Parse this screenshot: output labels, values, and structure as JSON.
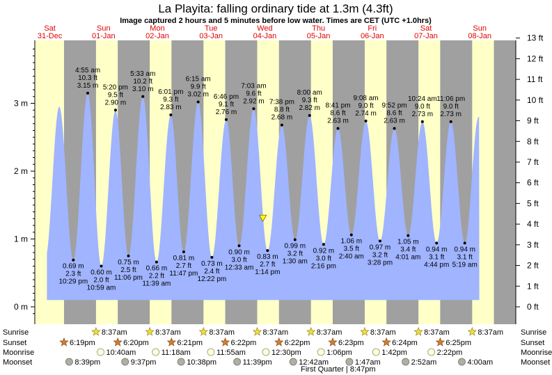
{
  "title": "La Playita: falling  ordinary tide at 1.3m (4.3ft)",
  "subtitle": "Image captured 2 hours and 5 minutes before low water. Times are CET (UTC +1.0hrs)",
  "colors": {
    "day": "#ffffc8",
    "night": "#a0a0a0",
    "tide": "#a0b4ff",
    "dayLabel": "#e00000"
  },
  "chart_data": {
    "type": "area",
    "days": [
      {
        "name": "Sat",
        "date": "31-Dec"
      },
      {
        "name": "Sun",
        "date": "01-Jan"
      },
      {
        "name": "Mon",
        "date": "02-Jan"
      },
      {
        "name": "Tue",
        "date": "03-Jan"
      },
      {
        "name": "Wed",
        "date": "04-Jan"
      },
      {
        "name": "Thu",
        "date": "05-Jan"
      },
      {
        "name": "Fri",
        "date": "06-Jan"
      },
      {
        "name": "Sat",
        "date": "07-Jan"
      },
      {
        "name": "Sun",
        "date": "08-Jan"
      }
    ],
    "y_left": {
      "unit": "m",
      "range": [
        -0.2,
        4.0
      ],
      "ticks": [
        "0 m",
        "1 m",
        "2 m",
        "3 m"
      ]
    },
    "y_right": {
      "unit": "ft",
      "ticks": [
        "0 ft",
        "1 ft",
        "2 ft",
        "3 ft",
        "4 ft",
        "5 ft",
        "6 ft",
        "7 ft",
        "8 ft",
        "9 ft",
        "10 ft",
        "11 ft",
        "12 ft",
        "13 ft"
      ]
    },
    "highs": [
      {
        "time": "4:55 am",
        "ft": "10.3 ft",
        "m": "3.15 m",
        "mv": 3.15,
        "day": 1,
        "hr": 4.92
      },
      {
        "time": "5:20 pm",
        "ft": "9.5 ft",
        "m": "2.90 m",
        "mv": 2.9,
        "day": 1,
        "hr": 17.33
      },
      {
        "time": "5:33 am",
        "ft": "10.2 ft",
        "m": "3.10 m",
        "mv": 3.1,
        "day": 2,
        "hr": 5.55
      },
      {
        "time": "6:01 pm",
        "ft": "9.3 ft",
        "m": "2.83 m",
        "mv": 2.83,
        "day": 2,
        "hr": 18.02
      },
      {
        "time": "6:15 am",
        "ft": "9.9 ft",
        "m": "3.02 m",
        "mv": 3.02,
        "day": 3,
        "hr": 6.25
      },
      {
        "time": "6:46 pm",
        "ft": "9.1 ft",
        "m": "2.76 m",
        "mv": 2.76,
        "day": 3,
        "hr": 18.77
      },
      {
        "time": "7:03 am",
        "ft": "9.6 ft",
        "m": "2.92 m",
        "mv": 2.92,
        "day": 4,
        "hr": 7.05
      },
      {
        "time": "7:38 pm",
        "ft": "8.8 ft",
        "m": "2.68 m",
        "mv": 2.68,
        "day": 4,
        "hr": 19.63
      },
      {
        "time": "8:00 am",
        "ft": "9.3 ft",
        "m": "2.82 m",
        "mv": 2.82,
        "day": 5,
        "hr": 8.0
      },
      {
        "time": "8:41 pm",
        "ft": "8.6 ft",
        "m": "2.63 m",
        "mv": 2.63,
        "day": 5,
        "hr": 20.68
      },
      {
        "time": "9:08 am",
        "ft": "9.0 ft",
        "m": "2.74 m",
        "mv": 2.74,
        "day": 6,
        "hr": 9.13
      },
      {
        "time": "9:52 pm",
        "ft": "8.6 ft",
        "m": "2.63 m",
        "mv": 2.63,
        "day": 6,
        "hr": 21.87
      },
      {
        "time": "10:24 am",
        "ft": "9.0 ft",
        "m": "2.73 m",
        "mv": 2.73,
        "day": 7,
        "hr": 10.4
      },
      {
        "time": "11:06 pm",
        "ft": "9.0 ft",
        "m": "2.73 m",
        "mv": 2.73,
        "day": 7,
        "hr": 23.1
      }
    ],
    "lows": [
      {
        "time": "10:29 pm",
        "ft": "2.3 ft",
        "m": "0.69 m",
        "mv": 0.69,
        "day": 0,
        "hr": 22.48
      },
      {
        "time": "10:59 am",
        "ft": "2.0 ft",
        "m": "0.60 m",
        "mv": 0.6,
        "day": 1,
        "hr": 10.98
      },
      {
        "time": "11:06 pm",
        "ft": "2.5 ft",
        "m": "0.75 m",
        "mv": 0.75,
        "day": 1,
        "hr": 23.1
      },
      {
        "time": "11:39 am",
        "ft": "2.2 ft",
        "m": "0.66 m",
        "mv": 0.66,
        "day": 2,
        "hr": 11.65
      },
      {
        "time": "11:47 pm",
        "ft": "2.7 ft",
        "m": "0.81 m",
        "mv": 0.81,
        "day": 2,
        "hr": 23.78
      },
      {
        "time": "12:22 pm",
        "ft": "2.4 ft",
        "m": "0.73 m",
        "mv": 0.73,
        "day": 3,
        "hr": 12.37
      },
      {
        "time": "12:33 am",
        "ft": "3.0 ft",
        "m": "0.90 m",
        "mv": 0.9,
        "day": 4,
        "hr": 0.55
      },
      {
        "time": "1:14 pm",
        "ft": "2.7 ft",
        "m": "0.83 m",
        "mv": 0.83,
        "day": 4,
        "hr": 13.23
      },
      {
        "time": "1:30 am",
        "ft": "3.2 ft",
        "m": "0.99 m",
        "mv": 0.99,
        "day": 5,
        "hr": 1.5
      },
      {
        "time": "2:16 pm",
        "ft": "3.0 ft",
        "m": "0.92 m",
        "mv": 0.92,
        "day": 5,
        "hr": 14.27
      },
      {
        "time": "2:40 am",
        "ft": "3.5 ft",
        "m": "1.06 m",
        "mv": 1.06,
        "day": 6,
        "hr": 2.67
      },
      {
        "time": "3:28 pm",
        "ft": "3.2 ft",
        "m": "0.97 m",
        "mv": 0.97,
        "day": 6,
        "hr": 15.47
      },
      {
        "time": "4:01 am",
        "ft": "3.4 ft",
        "m": "1.05 m",
        "mv": 1.05,
        "day": 7,
        "hr": 4.02
      },
      {
        "time": "4:44 pm",
        "ft": "3.1 ft",
        "m": "0.94 m",
        "mv": 0.94,
        "day": 7,
        "hr": 16.73
      },
      {
        "time": "5:19 am",
        "ft": "3.1 ft",
        "m": "0.94 m",
        "mv": 0.94,
        "day": 8,
        "hr": 5.32
      }
    ],
    "current": {
      "mv": 1.3,
      "day": 4,
      "hr": 11.15
    },
    "rows": {
      "sunrise": {
        "label": "Sunrise",
        "times": [
          "8:37am",
          "8:37am",
          "8:37am",
          "8:37am",
          "8:37am",
          "8:37am",
          "8:37am",
          "8:37am"
        ],
        "days": [
          1,
          2,
          3,
          4,
          5,
          6,
          7,
          8
        ],
        "hr": 8.62
      },
      "sunset": {
        "label": "Sunset",
        "times": [
          "6:19pm",
          "6:20pm",
          "6:21pm",
          "6:22pm",
          "6:22pm",
          "6:23pm",
          "6:24pm",
          "6:25pm"
        ],
        "days": [
          0,
          1,
          2,
          3,
          4,
          5,
          6,
          7
        ],
        "hr": 18.33
      },
      "moonrise": {
        "label": "Moonrise",
        "times": [
          "10:40am",
          "11:18am",
          "11:55am",
          "12:30pm",
          "1:06pm",
          "1:42pm",
          "2:22pm"
        ],
        "days": [
          1,
          2,
          3,
          4,
          5,
          6,
          7
        ],
        "hrs": [
          10.67,
          11.3,
          11.92,
          12.5,
          13.1,
          13.7,
          14.37
        ]
      },
      "moonset": {
        "label": "Moonset",
        "times": [
          "8:39pm",
          "9:37pm",
          "10:38pm",
          "11:39pm",
          "12:42am",
          "1:47am",
          "2:52am",
          "4:00am"
        ],
        "days": [
          0,
          1,
          2,
          3,
          5,
          6,
          7,
          8
        ],
        "hrs": [
          20.65,
          21.62,
          22.63,
          23.65,
          0.7,
          1.78,
          2.87,
          4.0
        ]
      }
    },
    "phase": {
      "text": "First Quarter | 8:47pm",
      "day": 5,
      "hr": 20.78
    }
  }
}
